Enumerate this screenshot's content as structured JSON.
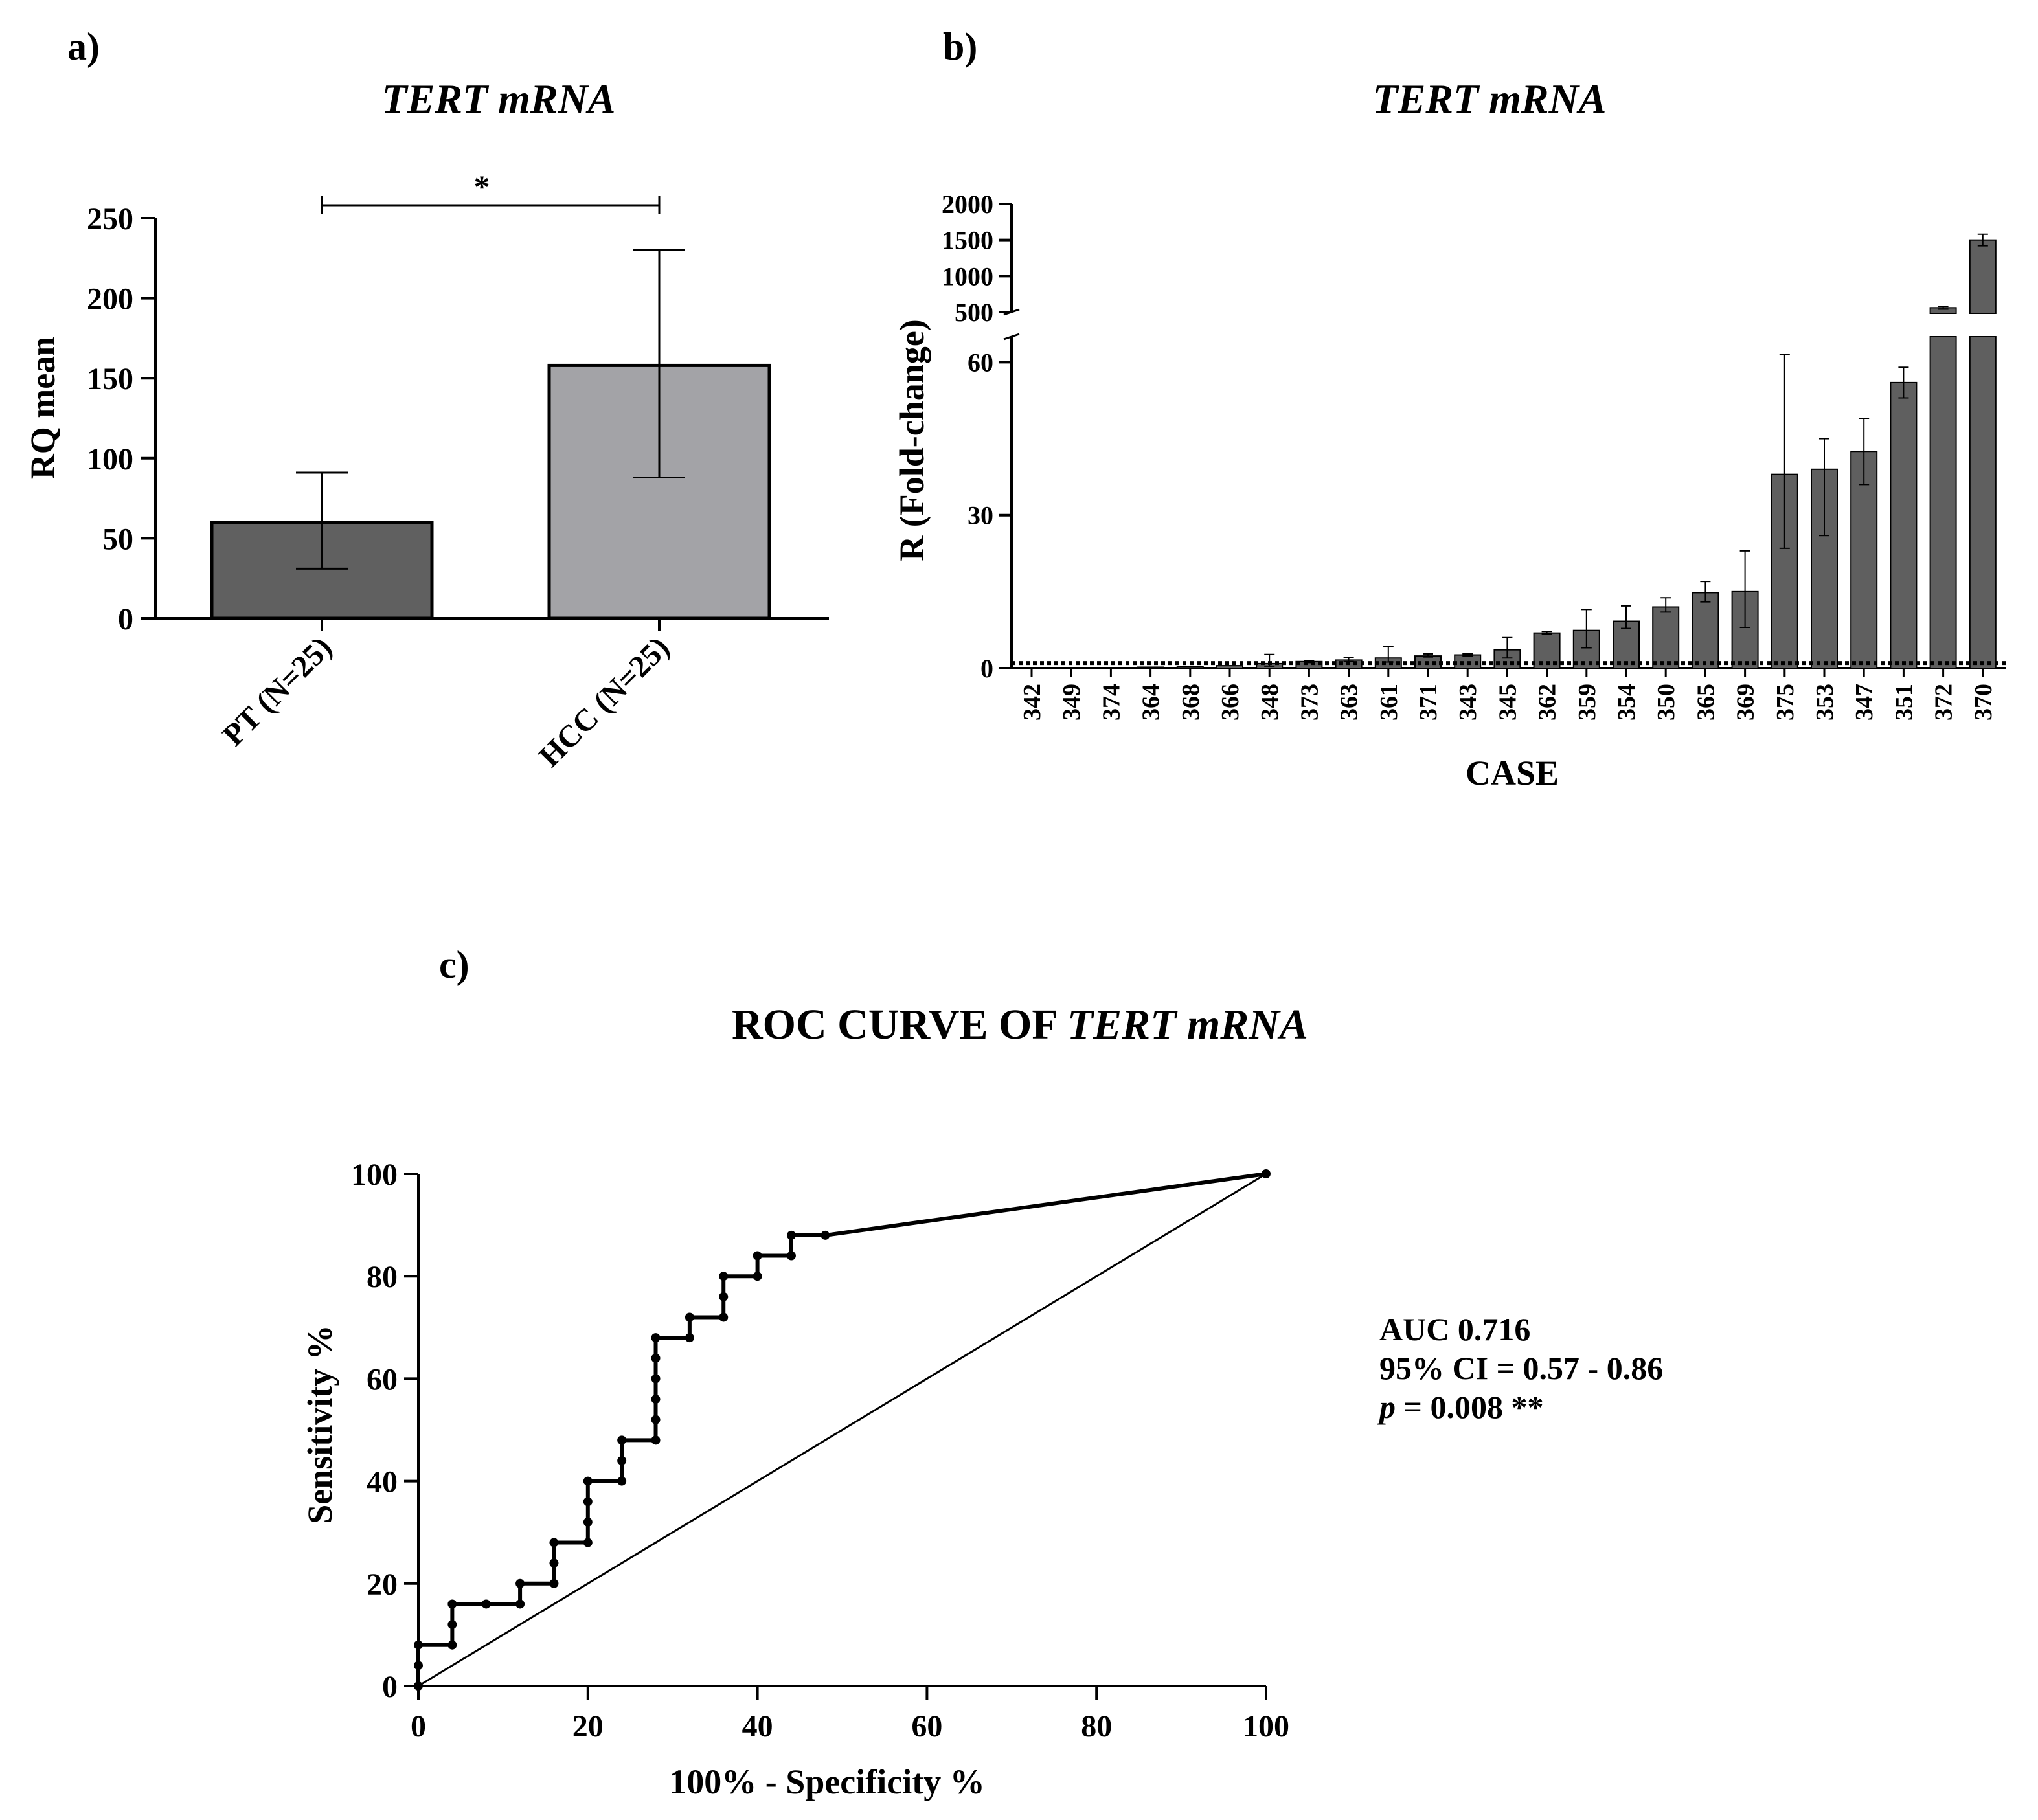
{
  "panels": {
    "a_label": "a)",
    "b_label": "b)",
    "c_label": "c)"
  },
  "chart_data": [
    {
      "id": "a",
      "type": "bar",
      "title": "TERT mRNA",
      "title_italic": true,
      "categories": [
        "PT (N=25)",
        "HCC (N=25)"
      ],
      "values": [
        60,
        158
      ],
      "error_upper": [
        91,
        230
      ],
      "error_lower": [
        31,
        88
      ],
      "bar_colors": [
        "#606060",
        "#a3a3a7"
      ],
      "ylabel": "RQ mean",
      "xlabel": "",
      "ylim": [
        0,
        250
      ],
      "yticks": [
        0,
        50,
        100,
        150,
        200,
        250
      ],
      "significance": "*",
      "grid": false
    },
    {
      "id": "b",
      "type": "bar",
      "title": "TERT mRNA",
      "title_italic": true,
      "xlabel": "CASE",
      "ylabel": "R (Fold-change)",
      "categories": [
        "342",
        "349",
        "374",
        "364",
        "368",
        "366",
        "348",
        "373",
        "363",
        "361",
        "371",
        "343",
        "345",
        "362",
        "359",
        "354",
        "350",
        "365",
        "369",
        "375",
        "353",
        "347",
        "351",
        "372",
        "370"
      ],
      "values": [
        0.1,
        0.1,
        0.1,
        0.2,
        0.3,
        0.5,
        0.9,
        1.3,
        1.6,
        2.0,
        2.4,
        2.6,
        3.6,
        6.9,
        7.4,
        9.2,
        12.0,
        14.8,
        15.0,
        38.0,
        39.0,
        42.5,
        56.0,
        560,
        1500
      ],
      "error_upper": [
        0.1,
        0.1,
        0.1,
        0.2,
        0.3,
        0.6,
        2.7,
        1.5,
        2.1,
        4.3,
        2.8,
        2.8,
        6.0,
        7.2,
        11.5,
        12.2,
        13.8,
        17.0,
        23.0,
        61.5,
        45.0,
        49.0,
        59.0,
        580,
        1580
      ],
      "error_lower": [
        0.1,
        0.1,
        0.1,
        0.2,
        0.3,
        0.4,
        0.4,
        1.1,
        1.3,
        1.2,
        2.2,
        2.4,
        2.0,
        6.7,
        4.0,
        7.8,
        11.0,
        13.0,
        8.0,
        23.5,
        26.0,
        36.0,
        53.0,
        540,
        1420
      ],
      "bar_color": "#5f5f5f",
      "reference_line": 1,
      "ylim_lower": [
        0,
        65
      ],
      "ylim_upper": [
        500,
        2000
      ],
      "yticks_lower": [
        0,
        30,
        60
      ],
      "yticks_upper": [
        500,
        1000,
        1500,
        2000
      ],
      "grid": false
    },
    {
      "id": "c",
      "type": "line",
      "title_prefix": "ROC CURVE OF ",
      "title_italic_part": "TERT mRNA",
      "xlabel": "100% - Specificity %",
      "ylabel": "Sensitivity %",
      "xlim": [
        0,
        100
      ],
      "ylim": [
        0,
        100
      ],
      "xticks": [
        0,
        20,
        40,
        60,
        80,
        100
      ],
      "yticks": [
        0,
        20,
        40,
        60,
        80,
        100
      ],
      "series": [
        {
          "name": "ROC",
          "x": [
            0,
            0,
            0,
            4,
            4,
            4,
            8,
            12,
            12,
            16,
            16,
            16,
            20,
            20,
            20,
            20,
            24,
            24,
            24,
            28,
            28,
            28,
            28,
            28,
            28,
            32,
            32,
            36,
            36,
            36,
            40,
            40,
            44,
            44,
            48,
            100
          ],
          "y": [
            0,
            4,
            8,
            8,
            12,
            16,
            16,
            16,
            20,
            20,
            24,
            28,
            28,
            32,
            36,
            40,
            40,
            44,
            48,
            48,
            52,
            56,
            60,
            64,
            68,
            68,
            72,
            72,
            76,
            80,
            80,
            84,
            84,
            88,
            88,
            100
          ]
        },
        {
          "name": "Reference",
          "x": [
            0,
            100
          ],
          "y": [
            0,
            100
          ]
        }
      ],
      "annotation": {
        "auc": "AUC 0.716",
        "ci": "95% CI = 0.57 - 0.86",
        "p_italic": "p",
        "p_rest": " = 0.008 **"
      },
      "grid": false
    }
  ]
}
